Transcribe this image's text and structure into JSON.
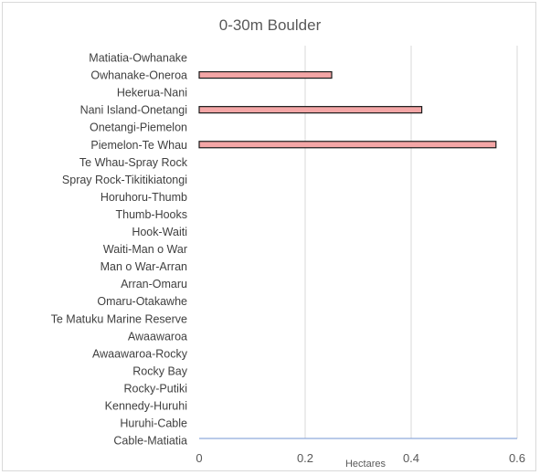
{
  "chart_data": {
    "type": "bar",
    "orientation": "horizontal",
    "title": "0-30m Boulder",
    "xlabel": "Hectares",
    "ylabel": "",
    "xlim": [
      0,
      0.6
    ],
    "xticks": [
      "0",
      "0.2",
      "0.4",
      "0.6"
    ],
    "grid": true,
    "categories": [
      "Matiatia-Owhanake",
      "Owhanake-Oneroa",
      "Hekerua-Nani",
      "Nani Island-Onetangi",
      "Onetangi-Piemelon",
      "Piemelon-Te Whau",
      "Te Whau-Spray Rock",
      "Spray Rock-Tikitikiatongi",
      "Horuhoru-Thumb",
      "Thumb-Hooks",
      "Hook-Waiti",
      "Waiti-Man o War",
      "Man o War-Arran",
      "Arran-Omaru",
      "Omaru-Otakawhe",
      "Te Matuku Marine Reserve",
      "Awaawaroa",
      "Awaawaroa-Rocky",
      "Rocky Bay",
      "Rocky-Putiki",
      "Kennedy-Huruhi",
      "Huruhi-Cable",
      "Cable-Matiatia"
    ],
    "values": [
      0,
      0.25,
      0,
      0.42,
      0,
      0.56,
      0,
      0,
      0,
      0,
      0,
      0,
      0,
      0,
      0,
      0,
      0,
      0,
      0,
      0,
      0,
      0,
      0
    ],
    "bar_color": "#f4a6a6",
    "bar_edge_color": "#1a1a1a",
    "axis_color": "#8faadc",
    "grid_color": "#d9d9d9"
  }
}
